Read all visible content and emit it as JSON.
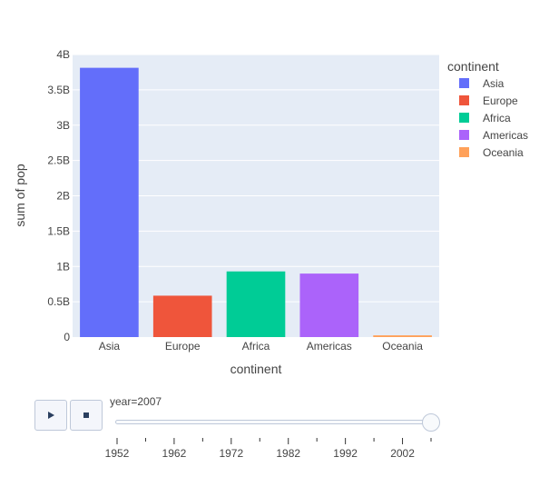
{
  "chart_data": {
    "type": "bar",
    "categories": [
      "Asia",
      "Europe",
      "Africa",
      "Americas",
      "Oceania"
    ],
    "values": [
      3811953827,
      586098529,
      929539692,
      898871184,
      24549947
    ],
    "colors": [
      "#636efa",
      "#ef553b",
      "#00cc96",
      "#ab63fa",
      "#ffa15a"
    ],
    "xlabel": "continent",
    "ylabel": "sum of pop",
    "ylim": [
      0,
      4000000000
    ],
    "yticks": [
      0,
      500000000,
      1000000000,
      1500000000,
      2000000000,
      2500000000,
      3000000000,
      3500000000,
      4000000000
    ],
    "ytick_labels": [
      "0",
      "0.5B",
      "1B",
      "1.5B",
      "2B",
      "2.5B",
      "3B",
      "3.5B",
      "4B"
    ],
    "grid": true,
    "legend": {
      "title": "continent",
      "placement": "right",
      "entries": [
        "Asia",
        "Europe",
        "Africa",
        "Americas",
        "Oceania"
      ]
    }
  },
  "slider": {
    "current_label": "year=2007",
    "value": 2007,
    "min": 1952,
    "max": 2007,
    "step": 5,
    "tick_labels": [
      "1952",
      "1962",
      "1972",
      "1982",
      "1992",
      "2002"
    ],
    "tick_values": [
      1952,
      1962,
      1972,
      1982,
      1992,
      2002
    ]
  },
  "controls": {
    "play_icon": "play-icon",
    "stop_icon": "stop-icon"
  }
}
